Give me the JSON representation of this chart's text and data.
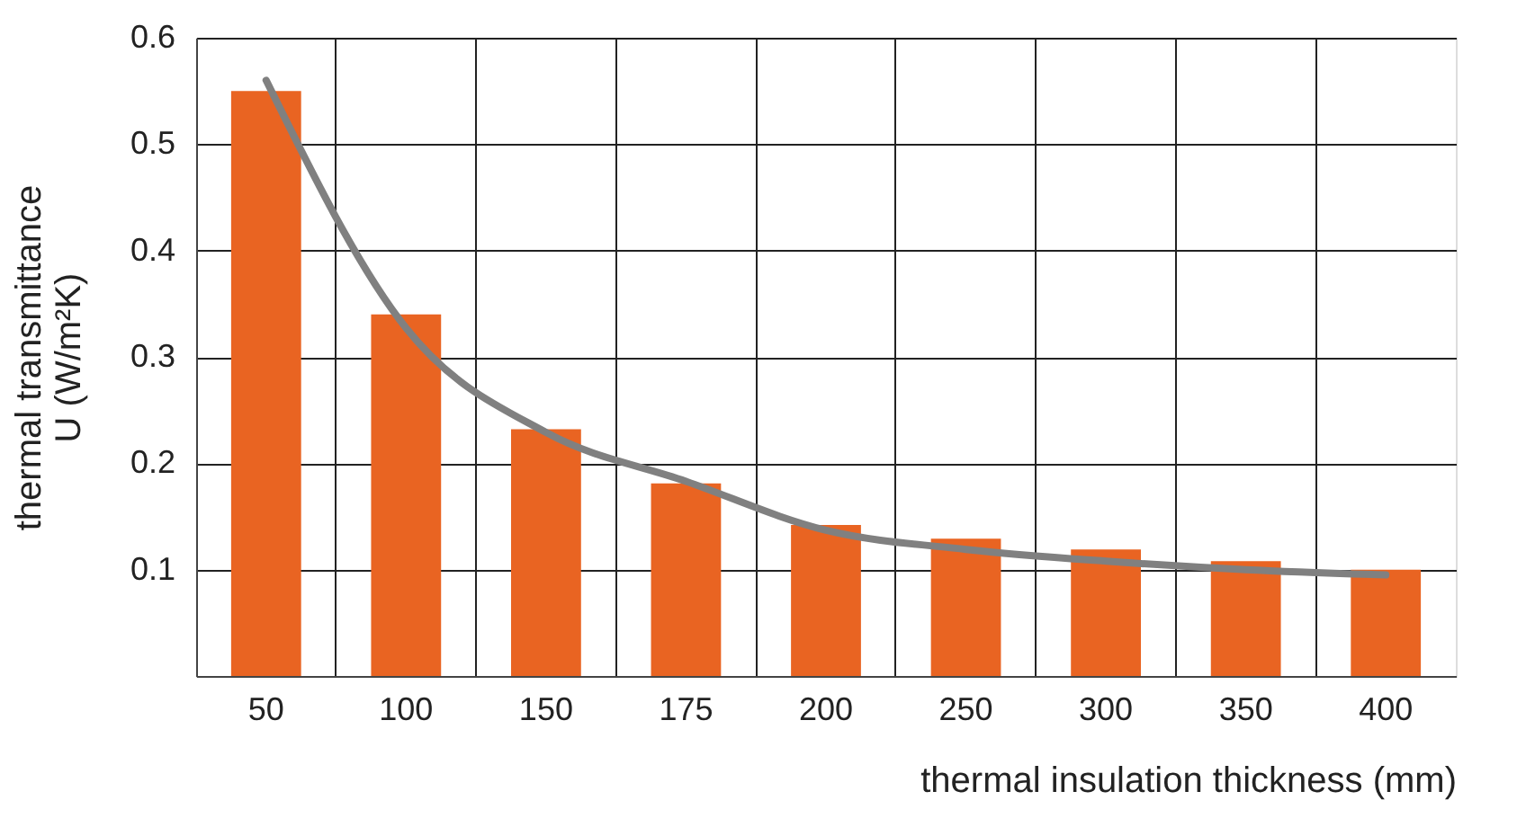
{
  "chart_data": {
    "type": "bar",
    "xlabel": "thermal insulation thickness (mm)",
    "ylabel": "thermal transmittance U (W/m²K)",
    "categories": [
      "50",
      "100",
      "150",
      "175",
      "200",
      "250",
      "300",
      "350",
      "400"
    ],
    "series": [
      {
        "color": "#e96422",
        "values": [
          0.55,
          0.34,
          0.232,
          0.181,
          0.142,
          0.129,
          0.119,
          0.108,
          0.1
        ]
      },
      {
        "type": "line",
        "color": "#808080",
        "values": [
          0.56,
          0.327,
          0.229,
          0.183,
          0.137,
          0.119,
          0.108,
          0.1,
          0.095
        ]
      }
    ],
    "ylim": [
      0,
      0.6
    ],
    "yticks": [
      0.1,
      0.2,
      0.3,
      0.4,
      0.5,
      0.6
    ],
    "grid": true
  }
}
